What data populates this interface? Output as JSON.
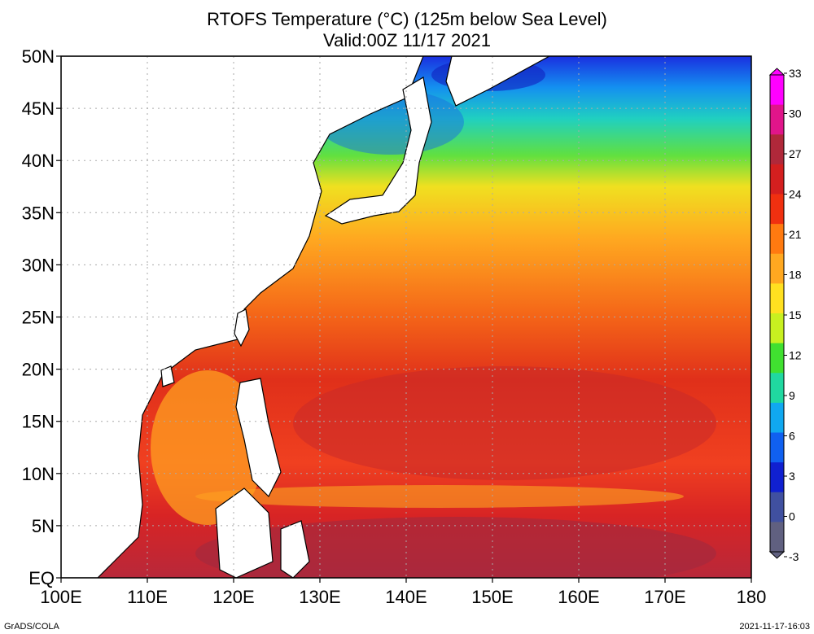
{
  "title_line1": "RTOFS Temperature (°C) (125m below Sea Level)",
  "title_line2": "Valid:00Z 11/17 2021",
  "credit_left": "GrADS/COLA",
  "credit_right": "2021-11-17-16:03",
  "map": {
    "lon_range": [
      100,
      180
    ],
    "lat_range": [
      0,
      50
    ],
    "grid": true,
    "lat_ticks": [
      {
        "value": 50,
        "label": "50N"
      },
      {
        "value": 45,
        "label": "45N"
      },
      {
        "value": 40,
        "label": "40N"
      },
      {
        "value": 35,
        "label": "35N"
      },
      {
        "value": 30,
        "label": "30N"
      },
      {
        "value": 25,
        "label": "25N"
      },
      {
        "value": 20,
        "label": "20N"
      },
      {
        "value": 15,
        "label": "15N"
      },
      {
        "value": 10,
        "label": "10N"
      },
      {
        "value": 5,
        "label": "5N"
      },
      {
        "value": 0,
        "label": "EQ"
      }
    ],
    "lon_ticks": [
      {
        "value": 100,
        "label": "100E"
      },
      {
        "value": 110,
        "label": "110E"
      },
      {
        "value": 120,
        "label": "120E"
      },
      {
        "value": 130,
        "label": "130E"
      },
      {
        "value": 140,
        "label": "140E"
      },
      {
        "value": 150,
        "label": "150E"
      },
      {
        "value": 160,
        "label": "160E"
      },
      {
        "value": 170,
        "label": "170E"
      },
      {
        "value": 180,
        "label": "180"
      }
    ]
  },
  "colorbar": {
    "labels": [
      "33",
      "30",
      "27",
      "24",
      "21",
      "18",
      "15",
      "12",
      "9",
      "6",
      "3",
      "0",
      "-3"
    ],
    "colors": [
      "#ff00ff",
      "#e0158a",
      "#b0283a",
      "#d41f1f",
      "#f03010",
      "#ff7a10",
      "#ffa820",
      "#ffe020",
      "#c8f020",
      "#40e030",
      "#20d8a0",
      "#10a8f0",
      "#1060f0",
      "#1020d0",
      "#4050a0",
      "#606080"
    ]
  }
}
